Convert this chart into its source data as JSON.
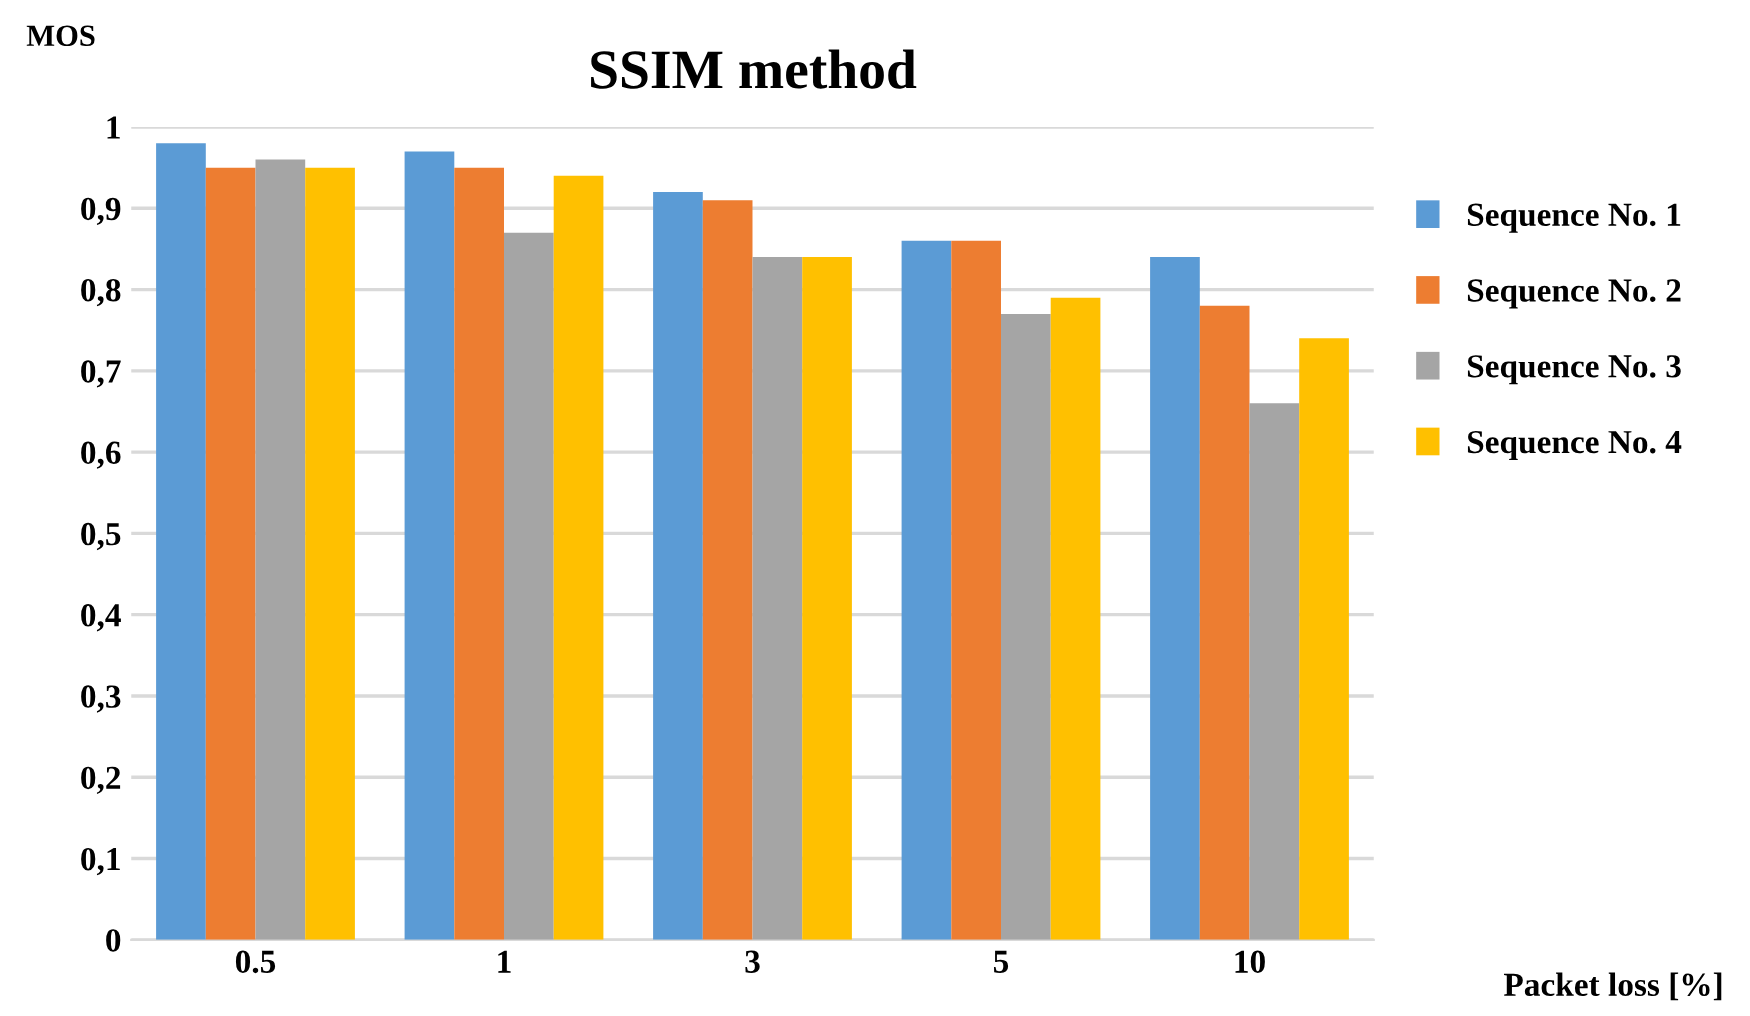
{
  "chart_data": {
    "type": "bar",
    "title": "SSIM method",
    "ylabel": "MOS",
    "xlabel": "Packet loss [%]",
    "categories": [
      "0.5",
      "1",
      "3",
      "5",
      "10"
    ],
    "series": [
      {
        "name": "Sequence No. 1",
        "color": "#5b9bd5",
        "values": [
          0.98,
          0.97,
          0.92,
          0.86,
          0.84
        ]
      },
      {
        "name": "Sequence No. 2",
        "color": "#ed7d31",
        "values": [
          0.95,
          0.95,
          0.91,
          0.86,
          0.78
        ]
      },
      {
        "name": "Sequence No. 3",
        "color": "#a5a5a5",
        "values": [
          0.96,
          0.87,
          0.84,
          0.77,
          0.66
        ]
      },
      {
        "name": "Sequence No. 4",
        "color": "#ffc000",
        "values": [
          0.95,
          0.94,
          0.84,
          0.79,
          0.74
        ]
      }
    ],
    "ylim": [
      0,
      1
    ],
    "yticks": [
      0,
      {
        "value": 0.1,
        "label": "0,1"
      },
      {
        "value": 0.2,
        "label": "0,2"
      },
      {
        "value": 0.3,
        "label": "0,3"
      },
      {
        "value": 0.4,
        "label": "0,4"
      },
      {
        "value": 0.5,
        "label": "0,5"
      },
      {
        "value": 0.6,
        "label": "0,6"
      },
      {
        "value": 0.7,
        "label": "0,7"
      },
      {
        "value": 0.8,
        "label": "0,8"
      },
      {
        "value": 0.9,
        "label": "0,9"
      },
      1
    ],
    "grid": "y",
    "legend": "right"
  }
}
